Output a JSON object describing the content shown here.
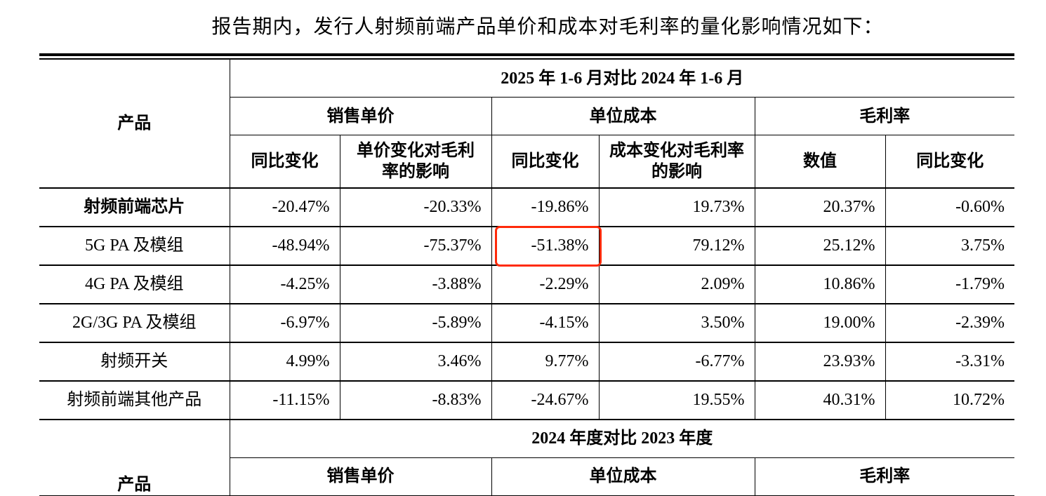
{
  "intro": "报告期内，发行人射频前端产品单价和成本对毛利率的量化影响情况如下：",
  "section1": {
    "period": "2025 年 1-6 月对比 2024 年 1-6 月",
    "product_header": "产品",
    "groups": [
      "销售单价",
      "单位成本",
      "毛利率"
    ],
    "subheaders": [
      "同比变化",
      "单价变化对毛利率的影响",
      "同比变化",
      "成本变化对毛利率的影响",
      "数值",
      "同比变化"
    ],
    "rows": [
      {
        "product": "射频前端芯片",
        "values": [
          "-20.47%",
          "-20.33%",
          "-19.86%",
          "19.73%",
          "20.37%",
          "-0.60%"
        ]
      },
      {
        "product": "5G PA 及模组",
        "values": [
          "-48.94%",
          "-75.37%",
          "-51.38%",
          "79.12%",
          "25.12%",
          "3.75%"
        ]
      },
      {
        "product": "4G PA 及模组",
        "values": [
          "-4.25%",
          "-3.88%",
          "-2.29%",
          "2.09%",
          "10.86%",
          "-1.79%"
        ]
      },
      {
        "product": "2G/3G PA 及模组",
        "values": [
          "-6.97%",
          "-5.89%",
          "-4.15%",
          "3.50%",
          "19.00%",
          "-2.39%"
        ]
      },
      {
        "product": "射频开关",
        "values": [
          "4.99%",
          "3.46%",
          "9.77%",
          "-6.77%",
          "23.93%",
          "-3.31%"
        ]
      },
      {
        "product": "射频前端其他产品",
        "values": [
          "-11.15%",
          "-8.83%",
          "-24.67%",
          "19.55%",
          "40.31%",
          "10.72%"
        ]
      }
    ]
  },
  "section2": {
    "period": "2024 年度对比 2023 年度",
    "product_header": "产品",
    "groups": [
      "销售单价",
      "单位成本",
      "毛利率"
    ]
  },
  "highlight_color": "#ff2a0a"
}
